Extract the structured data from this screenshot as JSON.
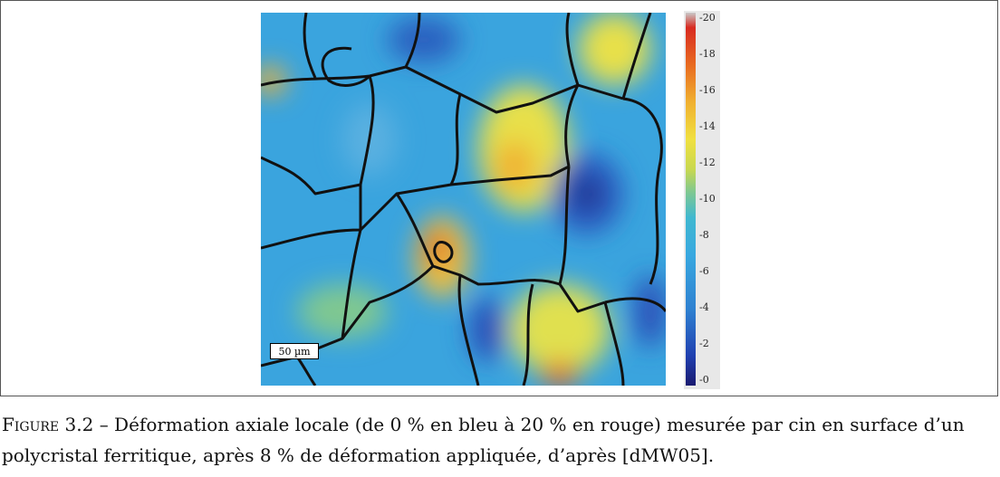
{
  "figure": {
    "scale_bar": "50 µm",
    "colorbar_labels": [
      "20",
      "18",
      "16",
      "14",
      "12",
      "10",
      "8",
      "6",
      "4",
      "2",
      "0"
    ],
    "caption": {
      "label": "Figure 3.2",
      "text": "– Déformation axiale locale (de 0 % en bleu à 20 % en rouge) mesurée par cin en surface d’un polycristal ferritique, après 8 % de déformation appliquée, d’après [dMW05]."
    }
  }
}
